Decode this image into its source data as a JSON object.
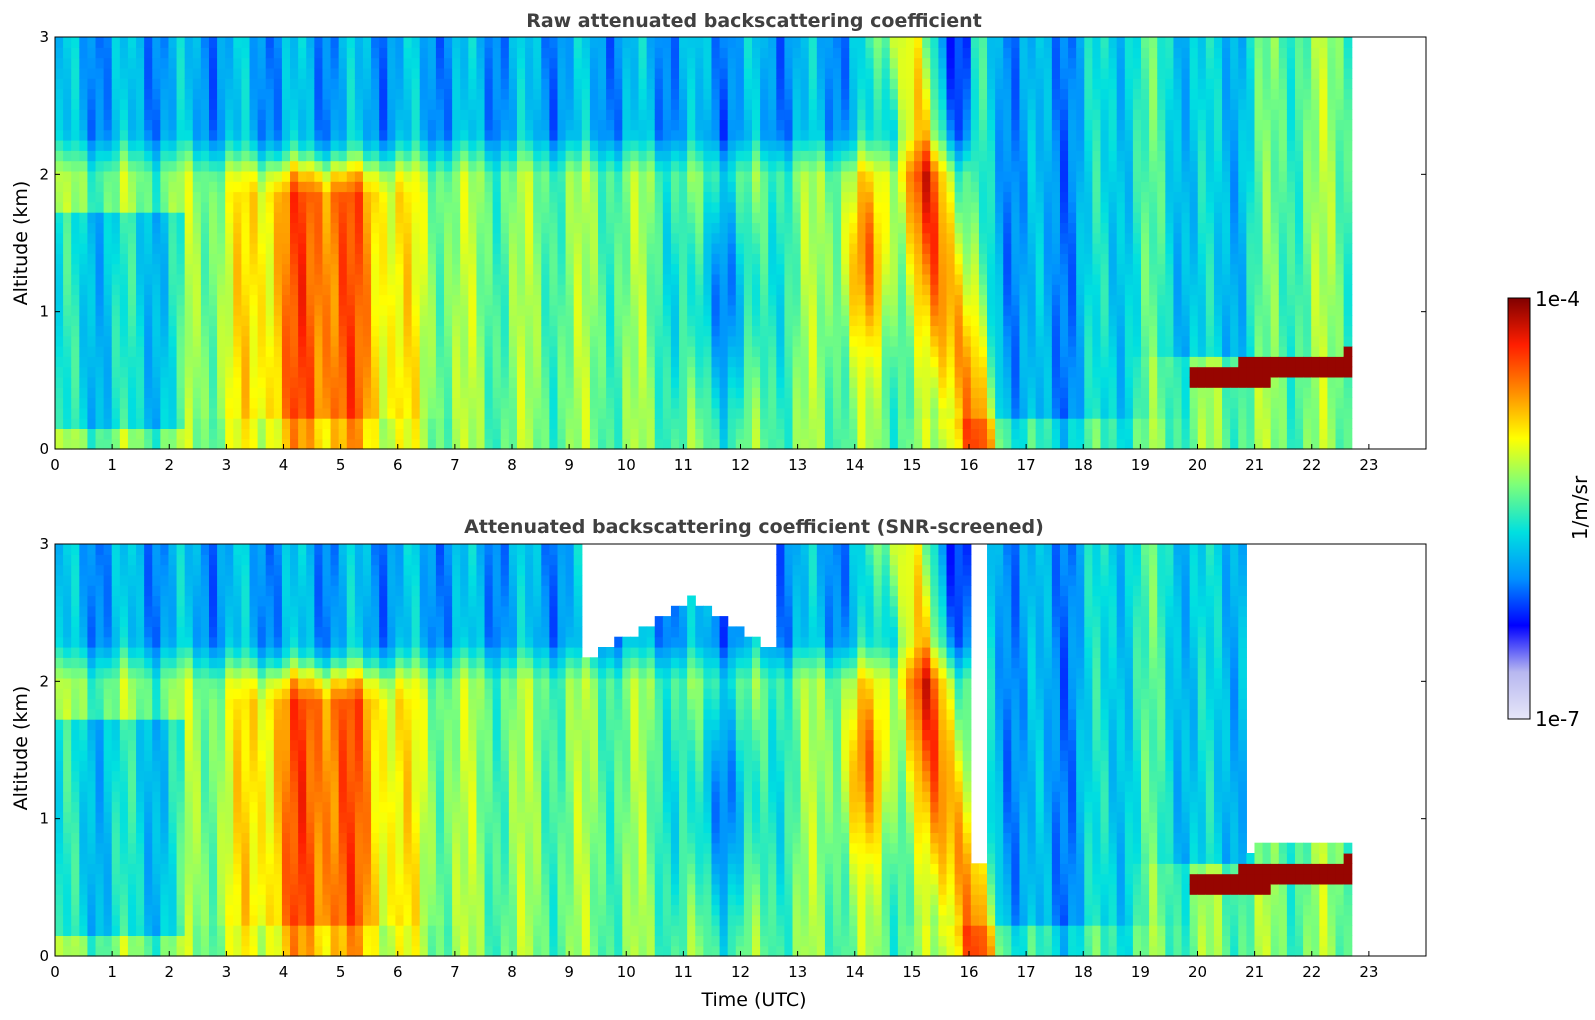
{
  "chart_data": [
    {
      "type": "heatmap",
      "title": "Raw attenuated backscattering coefficient",
      "xlabel": "",
      "ylabel": "Altitude (km)",
      "xlim": [
        0,
        24
      ],
      "ylim": [
        0,
        3
      ],
      "x_ticks": [
        "0",
        "1",
        "2",
        "3",
        "4",
        "5",
        "6",
        "7",
        "8",
        "9",
        "10",
        "11",
        "12",
        "13",
        "14",
        "15",
        "16",
        "17",
        "18",
        "19",
        "20",
        "21",
        "22",
        "23"
      ],
      "y_ticks": [
        "0",
        "1",
        "2",
        "3"
      ],
      "data_end_hour": 22.7,
      "screened": false
    },
    {
      "type": "heatmap",
      "title": "Attenuated backscattering coefficient (SNR-screened)",
      "xlabel": "Time (UTC)",
      "ylabel": "Altitude (km)",
      "xlim": [
        0,
        24
      ],
      "ylim": [
        0,
        3
      ],
      "x_ticks": [
        "0",
        "1",
        "2",
        "3",
        "4",
        "5",
        "6",
        "7",
        "8",
        "9",
        "10",
        "11",
        "12",
        "13",
        "14",
        "15",
        "16",
        "17",
        "18",
        "19",
        "20",
        "21",
        "22",
        "23"
      ],
      "y_ticks": [
        "0",
        "1",
        "2",
        "3"
      ],
      "data_end_hour": 22.7,
      "screened": true
    }
  ],
  "colorbar": {
    "label": "1/m/sr",
    "max_label": "1e-4",
    "min_label": "1e-7",
    "scale": "log",
    "range": [
      1e-07,
      0.0001
    ],
    "colormap": [
      "#e6e6f8",
      "#b8b8f0",
      "#0000ff",
      "#0090ff",
      "#00e0e0",
      "#7cff7a",
      "#ffff00",
      "#ff8c00",
      "#ff1e00",
      "#800000"
    ]
  }
}
